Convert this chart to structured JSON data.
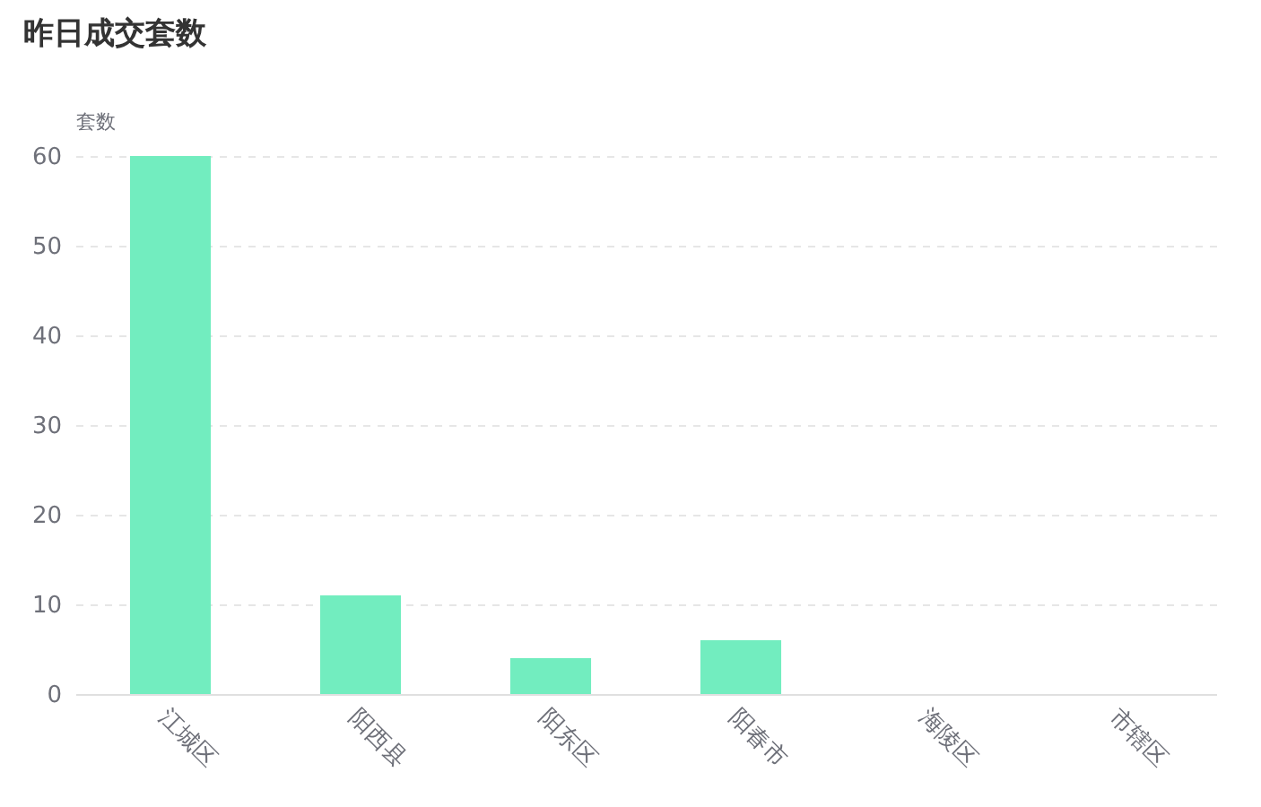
{
  "chart_data": {
    "type": "bar",
    "title": "昨日成交套数",
    "ylabel": "套数",
    "categories": [
      "江城区",
      "阳西县",
      "阳东区",
      "阳春市",
      "海陵区",
      "市辖区"
    ],
    "values": [
      60,
      11,
      4,
      6,
      0,
      0
    ],
    "color": "#72edbf",
    "ylim": [
      0,
      60
    ],
    "yticks": [
      0,
      10,
      20,
      30,
      40,
      50,
      60
    ],
    "grid": "y"
  }
}
